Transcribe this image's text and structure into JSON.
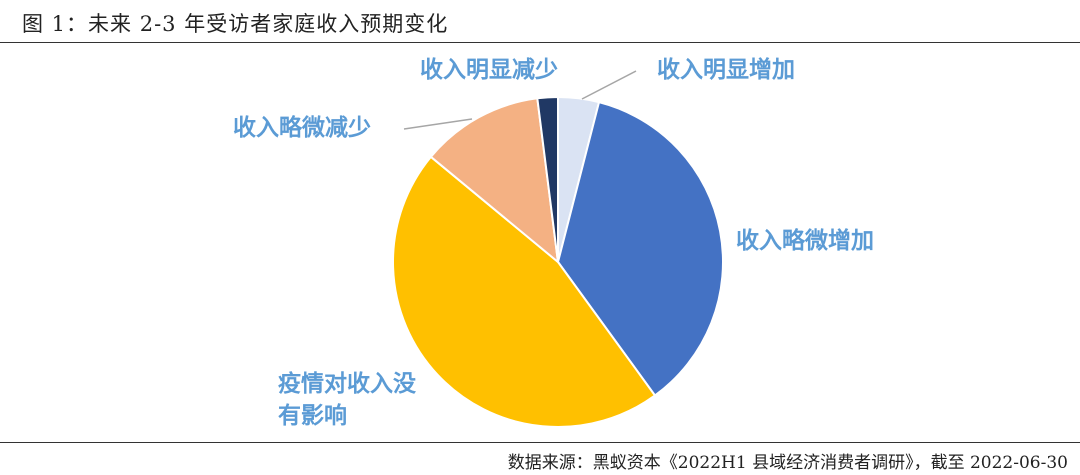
{
  "chart_data": {
    "type": "pie",
    "title": "图 1：未来 2-3 年受访者家庭收入预期变化",
    "source": "数据来源：黑蚁资本《2022H1 县域经济消费者调研》，截至 2022-06-30",
    "categories": [
      "收入明显增加",
      "收入略微增加",
      "疫情对收入没有影响",
      "收入略微减少",
      "收入明显减少"
    ],
    "values": [
      4,
      36,
      46,
      12,
      2
    ],
    "colors": [
      "#dae3f3",
      "#4472c4",
      "#ffc000",
      "#f4b183",
      "#203864"
    ],
    "label_color": "#5b9bd5"
  }
}
